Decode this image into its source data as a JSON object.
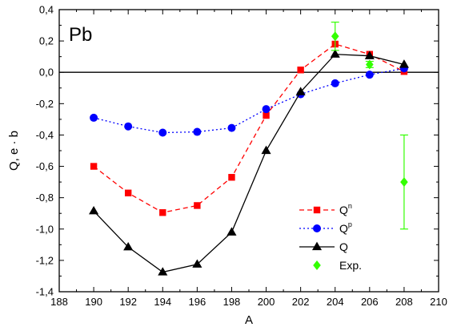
{
  "chart_data": {
    "type": "line",
    "panel_label": "Pb",
    "xlabel": "A",
    "ylabel": "Q, e · b",
    "xlim": [
      188,
      210
    ],
    "ylim": [
      -1.4,
      0.4
    ],
    "x_ticks": [
      188,
      190,
      192,
      194,
      196,
      198,
      200,
      202,
      204,
      206,
      208,
      210
    ],
    "y_ticks": [
      -1.4,
      -1.2,
      -1.0,
      -0.8,
      -0.6,
      -0.4,
      -0.2,
      0.0,
      0.2,
      0.4
    ],
    "x_tick_labels": [
      "188",
      "190",
      "192",
      "194",
      "196",
      "198",
      "200",
      "202",
      "204",
      "206",
      "208",
      "210"
    ],
    "y_tick_labels": [
      "-1,4",
      "-1,2",
      "-1,0",
      "-0,8",
      "-0,6",
      "-0,4",
      "-0,2",
      "0,0",
      "0,2",
      "0,4"
    ],
    "zero_line": 0.0,
    "legend_position": "bottom-right",
    "series": [
      {
        "name": "Qn",
        "legend_base": "Q",
        "legend_sup": "n",
        "color": "#ff0000",
        "line_style": "dashed",
        "marker": "square",
        "x": [
          190,
          192,
          194,
          196,
          198,
          200,
          202,
          204,
          206,
          208
        ],
        "y": [
          -0.6,
          -0.77,
          -0.895,
          -0.85,
          -0.67,
          -0.275,
          0.015,
          0.18,
          0.115,
          0.005
        ]
      },
      {
        "name": "Qp",
        "legend_base": "Q",
        "legend_sup": "p",
        "color": "#0000ff",
        "line_style": "dotted",
        "marker": "circle",
        "x": [
          190,
          192,
          194,
          196,
          198,
          200,
          202,
          204,
          206,
          208
        ],
        "y": [
          -0.29,
          -0.345,
          -0.385,
          -0.38,
          -0.355,
          -0.235,
          -0.14,
          -0.07,
          -0.015,
          0.025
        ]
      },
      {
        "name": "Q",
        "legend_base": "Q",
        "legend_sup": "",
        "color": "#000000",
        "line_style": "solid",
        "marker": "triangle",
        "x": [
          190,
          192,
          194,
          196,
          198,
          200,
          202,
          204,
          206,
          208
        ],
        "y": [
          -0.885,
          -1.115,
          -1.275,
          -1.225,
          -1.02,
          -0.5,
          -0.125,
          0.115,
          0.105,
          0.05
        ]
      },
      {
        "name": "Exp.",
        "legend_base": "Exp.",
        "legend_sup": "",
        "color": "#33ff00",
        "line_style": "none",
        "marker": "diamond",
        "x": [
          204,
          206,
          208
        ],
        "y": [
          0.23,
          0.05,
          -0.7
        ],
        "error": [
          0.09,
          0.02,
          0.3
        ]
      }
    ]
  }
}
